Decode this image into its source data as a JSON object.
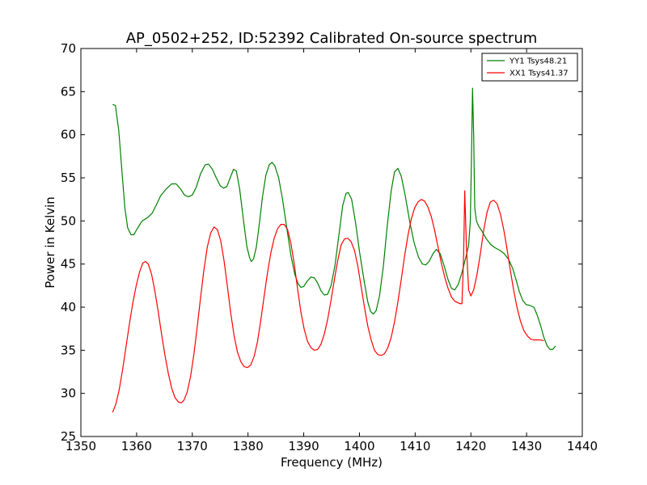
{
  "chart_data": {
    "type": "line",
    "title": "AP_0502+252, ID:52392 Calibrated On-source spectrum",
    "xlabel": "Frequency (MHz)",
    "ylabel": "Power in Kelvin",
    "xlim": [
      1350,
      1440
    ],
    "ylim": [
      25,
      70
    ],
    "xticks": [
      "1350",
      "1360",
      "1370",
      "1380",
      "1390",
      "1400",
      "1410",
      "1420",
      "1430",
      "1440"
    ],
    "yticks": [
      "25",
      "30",
      "35",
      "40",
      "45",
      "50",
      "55",
      "60",
      "65",
      "70"
    ],
    "grid": false,
    "legend_position": "top-right",
    "series": [
      {
        "name": "YY1 Tsys48.21",
        "color": "#008000",
        "points": [
          [
            1355.7,
            63.5
          ],
          [
            1356.2,
            63.4
          ],
          [
            1356.8,
            60.5
          ],
          [
            1357.4,
            55.5
          ],
          [
            1357.9,
            51.5
          ],
          [
            1358.4,
            49.2
          ],
          [
            1359.0,
            48.4
          ],
          [
            1359.5,
            48.4
          ],
          [
            1360.2,
            49.2
          ],
          [
            1361.0,
            50.0
          ],
          [
            1362.0,
            50.4
          ],
          [
            1362.8,
            50.9
          ],
          [
            1363.5,
            51.8
          ],
          [
            1364.3,
            52.9
          ],
          [
            1365.3,
            53.7
          ],
          [
            1366.3,
            54.3
          ],
          [
            1367.1,
            54.3
          ],
          [
            1367.9,
            53.7
          ],
          [
            1368.6,
            53.0
          ],
          [
            1369.3,
            52.8
          ],
          [
            1370.0,
            53.0
          ],
          [
            1370.7,
            53.9
          ],
          [
            1371.5,
            55.5
          ],
          [
            1372.3,
            56.5
          ],
          [
            1372.9,
            56.6
          ],
          [
            1373.6,
            56.0
          ],
          [
            1374.3,
            55.0
          ],
          [
            1375.0,
            54.1
          ],
          [
            1375.6,
            53.8
          ],
          [
            1376.2,
            54.0
          ],
          [
            1376.8,
            55.0
          ],
          [
            1377.4,
            56.0
          ],
          [
            1377.9,
            55.8
          ],
          [
            1378.5,
            53.7
          ],
          [
            1379.2,
            50.0
          ],
          [
            1379.8,
            47.0
          ],
          [
            1380.3,
            45.7
          ],
          [
            1380.6,
            45.3
          ],
          [
            1381.0,
            45.6
          ],
          [
            1381.5,
            47.0
          ],
          [
            1382.0,
            49.5
          ],
          [
            1382.6,
            52.8
          ],
          [
            1383.2,
            55.3
          ],
          [
            1383.8,
            56.5
          ],
          [
            1384.3,
            56.8
          ],
          [
            1384.8,
            56.4
          ],
          [
            1385.5,
            55.0
          ],
          [
            1386.2,
            52.5
          ],
          [
            1387.0,
            49.0
          ],
          [
            1387.7,
            46.0
          ],
          [
            1388.4,
            43.8
          ],
          [
            1389.0,
            42.7
          ],
          [
            1389.5,
            42.3
          ],
          [
            1390.0,
            42.4
          ],
          [
            1390.6,
            43.0
          ],
          [
            1391.3,
            43.5
          ],
          [
            1391.9,
            43.4
          ],
          [
            1392.5,
            42.8
          ],
          [
            1393.1,
            41.9
          ],
          [
            1393.7,
            41.4
          ],
          [
            1394.3,
            41.5
          ],
          [
            1394.9,
            42.5
          ],
          [
            1395.6,
            44.8
          ],
          [
            1396.3,
            48.3
          ],
          [
            1397.0,
            51.8
          ],
          [
            1397.6,
            53.2
          ],
          [
            1398.0,
            53.3
          ],
          [
            1398.6,
            52.5
          ],
          [
            1399.3,
            49.8
          ],
          [
            1400.0,
            46.5
          ],
          [
            1400.8,
            43.2
          ],
          [
            1401.5,
            40.6
          ],
          [
            1402.0,
            39.5
          ],
          [
            1402.5,
            39.2
          ],
          [
            1403.0,
            39.6
          ],
          [
            1403.6,
            41.3
          ],
          [
            1404.3,
            44.8
          ],
          [
            1405.0,
            49.5
          ],
          [
            1405.7,
            53.5
          ],
          [
            1406.3,
            55.7
          ],
          [
            1406.9,
            56.1
          ],
          [
            1407.5,
            55.2
          ],
          [
            1408.2,
            53.0
          ],
          [
            1409.0,
            50.0
          ],
          [
            1409.8,
            47.5
          ],
          [
            1410.6,
            45.8
          ],
          [
            1411.3,
            45.0
          ],
          [
            1411.9,
            44.9
          ],
          [
            1412.5,
            45.3
          ],
          [
            1413.2,
            46.2
          ],
          [
            1413.8,
            46.7
          ],
          [
            1414.5,
            46.2
          ],
          [
            1415.2,
            44.8
          ],
          [
            1415.9,
            43.2
          ],
          [
            1416.5,
            42.2
          ],
          [
            1417.1,
            42.0
          ],
          [
            1417.7,
            42.6
          ],
          [
            1418.4,
            44.0
          ],
          [
            1419.1,
            45.8
          ],
          [
            1419.6,
            47.2
          ],
          [
            1419.9,
            50.0
          ],
          [
            1420.1,
            57.0
          ],
          [
            1420.3,
            65.4
          ],
          [
            1420.5,
            60.0
          ],
          [
            1420.7,
            51.5
          ],
          [
            1421.0,
            50.0
          ],
          [
            1421.4,
            49.4
          ],
          [
            1422.0,
            48.8
          ],
          [
            1422.7,
            48.0
          ],
          [
            1423.5,
            47.3
          ],
          [
            1424.3,
            46.9
          ],
          [
            1425.2,
            46.6
          ],
          [
            1426.0,
            46.2
          ],
          [
            1426.8,
            45.5
          ],
          [
            1427.5,
            44.5
          ],
          [
            1428.1,
            43.2
          ],
          [
            1428.7,
            41.8
          ],
          [
            1429.3,
            40.8
          ],
          [
            1429.9,
            40.3
          ],
          [
            1430.6,
            40.2
          ],
          [
            1431.3,
            40.0
          ],
          [
            1431.9,
            39.1
          ],
          [
            1432.5,
            37.9
          ],
          [
            1433.1,
            36.5
          ],
          [
            1433.7,
            35.5
          ],
          [
            1434.2,
            35.1
          ],
          [
            1434.7,
            35.1
          ],
          [
            1435.2,
            35.5
          ]
        ]
      },
      {
        "name": "XX1 Tsys41.37",
        "color": "#ff0000",
        "points": [
          [
            1355.7,
            27.8
          ],
          [
            1356.3,
            28.8
          ],
          [
            1356.9,
            30.5
          ],
          [
            1357.5,
            32.8
          ],
          [
            1358.1,
            35.4
          ],
          [
            1358.7,
            38.0
          ],
          [
            1359.3,
            40.4
          ],
          [
            1359.9,
            42.4
          ],
          [
            1360.5,
            44.0
          ],
          [
            1361.1,
            45.1
          ],
          [
            1361.6,
            45.3
          ],
          [
            1362.1,
            45.0
          ],
          [
            1362.7,
            43.8
          ],
          [
            1363.3,
            41.8
          ],
          [
            1363.9,
            39.4
          ],
          [
            1364.5,
            36.8
          ],
          [
            1365.1,
            34.4
          ],
          [
            1365.7,
            32.3
          ],
          [
            1366.3,
            30.6
          ],
          [
            1366.9,
            29.5
          ],
          [
            1367.5,
            29.0
          ],
          [
            1368.0,
            28.9
          ],
          [
            1368.5,
            29.2
          ],
          [
            1369.1,
            30.2
          ],
          [
            1369.7,
            32.0
          ],
          [
            1370.3,
            34.6
          ],
          [
            1370.9,
            37.8
          ],
          [
            1371.5,
            41.2
          ],
          [
            1372.1,
            44.4
          ],
          [
            1372.7,
            47.0
          ],
          [
            1373.3,
            48.6
          ],
          [
            1373.9,
            49.3
          ],
          [
            1374.5,
            49.0
          ],
          [
            1375.1,
            47.7
          ],
          [
            1375.7,
            45.4
          ],
          [
            1376.3,
            42.4
          ],
          [
            1376.9,
            39.3
          ],
          [
            1377.5,
            36.7
          ],
          [
            1378.1,
            34.8
          ],
          [
            1378.7,
            33.7
          ],
          [
            1379.3,
            33.1
          ],
          [
            1379.9,
            33.0
          ],
          [
            1380.5,
            33.3
          ],
          [
            1381.1,
            34.3
          ],
          [
            1381.7,
            36.0
          ],
          [
            1382.3,
            38.5
          ],
          [
            1382.9,
            41.3
          ],
          [
            1383.5,
            44.0
          ],
          [
            1384.1,
            46.3
          ],
          [
            1384.7,
            48.0
          ],
          [
            1385.3,
            49.1
          ],
          [
            1385.9,
            49.6
          ],
          [
            1386.5,
            49.6
          ],
          [
            1387.1,
            49.0
          ],
          [
            1387.7,
            47.4
          ],
          [
            1388.3,
            45.0
          ],
          [
            1388.9,
            42.1
          ],
          [
            1389.5,
            39.4
          ],
          [
            1390.1,
            37.4
          ],
          [
            1390.7,
            36.0
          ],
          [
            1391.3,
            35.3
          ],
          [
            1391.9,
            35.0
          ],
          [
            1392.5,
            35.1
          ],
          [
            1393.1,
            35.7
          ],
          [
            1393.7,
            36.9
          ],
          [
            1394.3,
            38.6
          ],
          [
            1394.9,
            40.8
          ],
          [
            1395.5,
            43.2
          ],
          [
            1396.1,
            45.4
          ],
          [
            1396.7,
            47.2
          ],
          [
            1397.3,
            47.9
          ],
          [
            1397.9,
            48.0
          ],
          [
            1398.5,
            47.6
          ],
          [
            1399.1,
            46.6
          ],
          [
            1399.7,
            44.8
          ],
          [
            1400.3,
            42.4
          ],
          [
            1400.9,
            40.0
          ],
          [
            1401.5,
            37.8
          ],
          [
            1402.1,
            36.2
          ],
          [
            1402.7,
            35.0
          ],
          [
            1403.3,
            34.5
          ],
          [
            1403.9,
            34.4
          ],
          [
            1404.5,
            34.6
          ],
          [
            1405.1,
            35.3
          ],
          [
            1405.7,
            36.5
          ],
          [
            1406.3,
            38.3
          ],
          [
            1406.9,
            40.6
          ],
          [
            1407.5,
            43.2
          ],
          [
            1408.1,
            45.9
          ],
          [
            1408.7,
            48.3
          ],
          [
            1409.3,
            50.2
          ],
          [
            1409.9,
            51.5
          ],
          [
            1410.5,
            52.2
          ],
          [
            1411.1,
            52.5
          ],
          [
            1411.7,
            52.3
          ],
          [
            1412.3,
            51.6
          ],
          [
            1412.9,
            50.5
          ],
          [
            1413.5,
            48.9
          ],
          [
            1414.1,
            47.0
          ],
          [
            1414.7,
            45.1
          ],
          [
            1415.3,
            43.5
          ],
          [
            1415.9,
            42.2
          ],
          [
            1416.5,
            41.2
          ],
          [
            1417.1,
            40.7
          ],
          [
            1417.7,
            40.5
          ],
          [
            1418.1,
            40.4
          ],
          [
            1418.4,
            40.4
          ],
          [
            1418.7,
            46.0
          ],
          [
            1418.9,
            53.5
          ],
          [
            1419.2,
            47.0
          ],
          [
            1419.6,
            42.0
          ],
          [
            1420.0,
            41.3
          ],
          [
            1420.5,
            42.0
          ],
          [
            1421.1,
            43.8
          ],
          [
            1421.7,
            46.2
          ],
          [
            1422.3,
            48.9
          ],
          [
            1422.9,
            51.0
          ],
          [
            1423.5,
            52.2
          ],
          [
            1424.1,
            52.4
          ],
          [
            1424.7,
            52.0
          ],
          [
            1425.3,
            50.8
          ],
          [
            1425.9,
            49.0
          ],
          [
            1426.5,
            46.7
          ],
          [
            1427.1,
            44.2
          ],
          [
            1427.7,
            41.9
          ],
          [
            1428.3,
            39.9
          ],
          [
            1428.9,
            38.4
          ],
          [
            1429.5,
            37.3
          ],
          [
            1430.1,
            36.7
          ],
          [
            1430.7,
            36.3
          ],
          [
            1431.3,
            36.2
          ],
          [
            1431.9,
            36.2
          ],
          [
            1432.5,
            36.2
          ],
          [
            1433.1,
            36.1
          ]
        ]
      }
    ]
  }
}
